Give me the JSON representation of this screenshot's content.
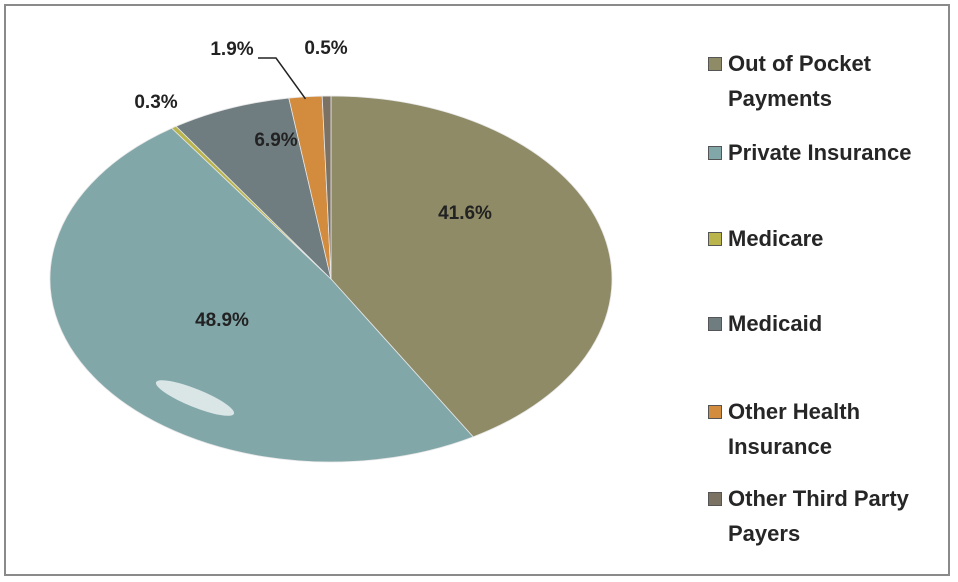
{
  "chart_data": {
    "type": "pie",
    "categories": [
      "Out of Pocket Payments",
      "Private Insurance",
      "Medicare",
      "Medicaid",
      "Other Health Insurance",
      "Other Third Party Payers"
    ],
    "values": [
      41.6,
      48.9,
      0.3,
      6.9,
      1.9,
      0.5
    ],
    "value_labels": [
      "41.6%",
      "48.9%",
      "0.3%",
      "6.9%",
      "1.9%",
      "0.5%"
    ],
    "colors": [
      "#8e8b66",
      "#82a7a9",
      "#b9b54c",
      "#6f7c80",
      "#d38b3e",
      "#7b7263"
    ],
    "legend": "right"
  }
}
